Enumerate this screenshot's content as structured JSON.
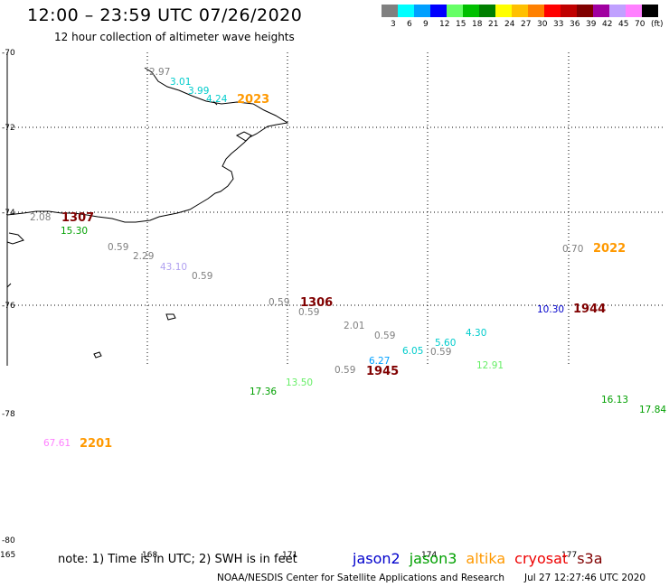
{
  "header": {
    "title": "12:00 – 23:59 UTC 07/26/2020",
    "subtitle": "12 hour collection of altimeter wave heights"
  },
  "scale": {
    "colors": [
      "#808080",
      "#00ffff",
      "#00a0ff",
      "#0000ff",
      "#66ff66",
      "#00c000",
      "#008000",
      "#ffff00",
      "#ffc000",
      "#ff8000",
      "#ff0000",
      "#c00000",
      "#800000",
      "#a000a0",
      "#c0a0ff",
      "#ff80ff",
      "#000000"
    ],
    "labels": [
      "3",
      "6",
      "9",
      "12",
      "15",
      "18",
      "21",
      "24",
      "27",
      "30",
      "33",
      "36",
      "39",
      "42",
      "45",
      "70",
      "(ft)"
    ]
  },
  "axes": {
    "lat_labels": [
      "-70",
      "-72",
      "-74",
      "-76",
      "-78",
      "-80"
    ],
    "lon_labels": [
      "165",
      "168",
      "171",
      "174",
      "177"
    ]
  },
  "observations": [
    {
      "text": "2.97",
      "color": "#808080"
    },
    {
      "text": "3.01",
      "color": "#00cccc"
    },
    {
      "text": "3.99",
      "color": "#00cccc"
    },
    {
      "text": "4.24",
      "color": "#00cccc"
    },
    {
      "text": "2023",
      "color": "#ff9900",
      "time": true
    },
    {
      "text": "2.08",
      "color": "#808080"
    },
    {
      "text": "1307",
      "color": "#800000",
      "time": true
    },
    {
      "text": "15.30",
      "color": "#00a000"
    },
    {
      "text": "0.59",
      "color": "#808080"
    },
    {
      "text": "2.29",
      "color": "#808080"
    },
    {
      "text": "43.10",
      "color": "#b0a0f0"
    },
    {
      "text": "0.59",
      "color": "#808080"
    },
    {
      "text": "0.59",
      "color": "#808080"
    },
    {
      "text": "1306",
      "color": "#800000",
      "time": true
    },
    {
      "text": "0.59",
      "color": "#808080"
    },
    {
      "text": "2.01",
      "color": "#808080"
    },
    {
      "text": "0.59",
      "color": "#808080"
    },
    {
      "text": "4.30",
      "color": "#00cccc"
    },
    {
      "text": "5.60",
      "color": "#00cccc"
    },
    {
      "text": "6.05",
      "color": "#00cccc"
    },
    {
      "text": "0.59",
      "color": "#808080"
    },
    {
      "text": "6.27",
      "color": "#00a0ff"
    },
    {
      "text": "12.91",
      "color": "#66ee66"
    },
    {
      "text": "0.59",
      "color": "#808080"
    },
    {
      "text": "1945",
      "color": "#800000",
      "time": true
    },
    {
      "text": "17.36",
      "color": "#00a000"
    },
    {
      "text": "13.50",
      "color": "#66ee66"
    },
    {
      "text": "0.70",
      "color": "#808080"
    },
    {
      "text": "2022",
      "color": "#ff9900",
      "time": true
    },
    {
      "text": "10.30",
      "color": "#0000cc"
    },
    {
      "text": "1944",
      "color": "#800000",
      "time": true
    },
    {
      "text": "16.13",
      "color": "#00a000"
    },
    {
      "text": "17.84",
      "color": "#00a000"
    },
    {
      "text": "67.61",
      "color": "#ff80ff"
    },
    {
      "text": "2201",
      "color": "#ff9900",
      "time": true
    }
  ],
  "note": "note: 1) Time is in UTC; 2) SWH is in feet",
  "satellites": [
    {
      "name": "jason2",
      "color": "#0000cc"
    },
    {
      "name": "jason3",
      "color": "#00a000"
    },
    {
      "name": "altika",
      "color": "#ff9900"
    },
    {
      "name": "cryosat",
      "color": "#ee0000"
    },
    {
      "name": "s3a",
      "color": "#800000"
    }
  ],
  "footer": "NOAA/NESDIS Center for Satellite Applications and Research",
  "timestamp": "Jul 27 12:27:46 UTC 2020"
}
